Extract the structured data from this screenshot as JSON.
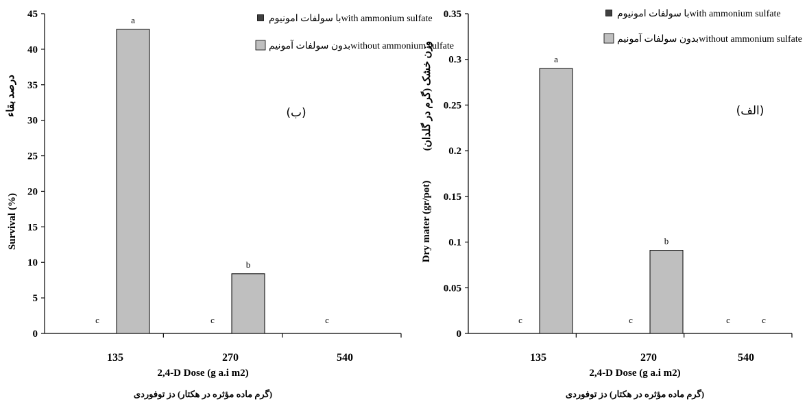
{
  "chart_data": [
    {
      "type": "bar",
      "panel_label": "(ب)",
      "ylabel": "Survival (%)",
      "ylabel_fa": "درصد بقاء",
      "xlabel": "2,4-D Dose (g a.i m2)",
      "xlabel_fa": "(گرم ماده مؤثره در هکتار) دز توفوردی",
      "categories": [
        "135",
        "270",
        "540"
      ],
      "ylim": [
        0,
        45
      ],
      "yticks": [
        "0",
        "5",
        "10",
        "15",
        "20",
        "25",
        "30",
        "35",
        "40",
        "45"
      ],
      "series": [
        {
          "name": "با سولفات امونیومwith ammonium sulfate",
          "color": "#404040",
          "values": [
            0,
            0,
            0
          ],
          "labels": [
            "c",
            "c",
            "c"
          ]
        },
        {
          "name": "بدون سولفات آمونیمwithout ammonium sulfate",
          "color": "#bfbfbf",
          "values": [
            42.8,
            8.4,
            0
          ],
          "labels": [
            "a",
            "b",
            ""
          ]
        }
      ],
      "legend": "top-right",
      "grid": false
    },
    {
      "type": "bar",
      "panel_label": "(الف)",
      "ylabel": "Dry mater (gr/pot)",
      "ylabel_fa": "وزن خشک (گرم در گلدان)",
      "xlabel": "2,4-D Dose (g a.i m2)",
      "xlabel_fa": "(گرم ماده مؤثره در هکتار) دز توفوردی",
      "categories": [
        "135",
        "270",
        "540"
      ],
      "ylim": [
        0,
        0.35
      ],
      "yticks": [
        "0",
        "0.05",
        "0.1",
        "0.15",
        "0.2",
        "0.25",
        "0.3",
        "0.35"
      ],
      "series": [
        {
          "name": "با سولفات امونیومwith ammonium sulfate",
          "color": "#404040",
          "values": [
            0,
            0,
            0
          ],
          "labels": [
            "c",
            "c",
            "c"
          ]
        },
        {
          "name": "بدون سولفات آمونیمwithout ammonium sulfate",
          "color": "#bfbfbf",
          "values": [
            0.29,
            0.091,
            0
          ],
          "labels": [
            "a",
            "b",
            "c"
          ]
        }
      ],
      "legend": "top-right",
      "grid": false
    }
  ]
}
